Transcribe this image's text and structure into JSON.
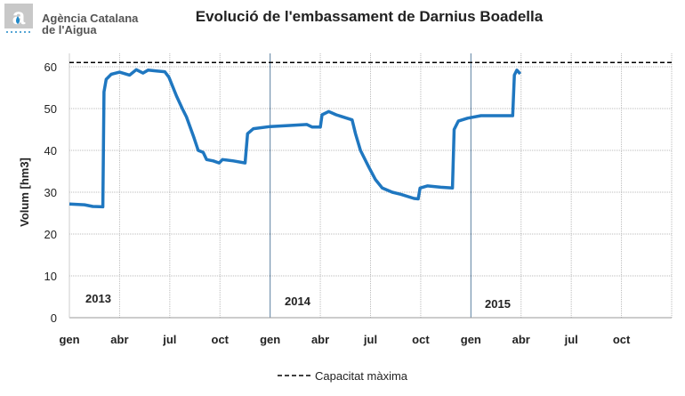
{
  "header": {
    "org_line1": "Agència Catalana",
    "org_line2": "de l'Aigua",
    "title": "Evolució de l'embassament de Darnius Boadella"
  },
  "colors": {
    "series": "#1f77c0",
    "capacity": "#000000",
    "grid": "#bbbbbb",
    "year_divider": "#5a7fa0"
  },
  "chart_data": {
    "type": "line",
    "title": "Evolució de l'embassament de Darnius Boadella",
    "ylabel": "Volum [hm3]",
    "xlabel": "",
    "ylim": [
      0,
      65
    ],
    "yticks": [
      0,
      10,
      20,
      30,
      40,
      50,
      60
    ],
    "xticks": [
      "gen",
      "abr",
      "jul",
      "oct",
      "gen",
      "abr",
      "jul",
      "oct",
      "gen",
      "abr",
      "jul",
      "oct"
    ],
    "year_labels": [
      "2013",
      "2014",
      "2015"
    ],
    "grid": true,
    "legend": "bottom",
    "capacity": {
      "name": "Capacitat màxima",
      "value": 61
    },
    "x_unit": "months since Jan 2013",
    "series": [
      {
        "x": [
          0,
          0.9,
          1.4,
          2.0,
          2.07,
          2.2,
          2.5,
          3.0,
          3.6,
          4.0,
          4.4,
          4.7,
          5.2,
          5.7,
          5.95,
          6.4,
          6.75,
          7.0,
          7.45,
          7.7,
          8.0,
          8.2,
          8.6,
          8.95,
          9.15,
          9.8,
          10.5,
          10.65,
          11.0,
          12.0,
          13.4,
          14.2,
          14.5,
          15.0,
          15.1,
          15.5,
          15.95,
          16.9,
          17.1,
          17.4,
          17.9,
          18.3,
          18.7,
          19.3,
          19.8,
          20.6,
          20.85,
          20.96,
          21.4,
          22.2,
          22.9,
          23.0,
          23.25,
          23.8,
          24.6,
          25.6,
          26.5,
          26.6,
          26.75,
          26.95
        ],
        "y": [
          27.2,
          27,
          26.6,
          26.5,
          54,
          57,
          58.2,
          58.7,
          58,
          59.3,
          58.5,
          59.2,
          59,
          58.8,
          57.5,
          53,
          50,
          48,
          43,
          40,
          39.5,
          37.8,
          37.5,
          37,
          37.8,
          37.5,
          37,
          44,
          45.2,
          45.7,
          46,
          46.2,
          45.6,
          45.6,
          48.5,
          49.3,
          48.5,
          47.3,
          44,
          40,
          36,
          33,
          31,
          30,
          29.5,
          28.5,
          28.4,
          31,
          31.5,
          31.2,
          31,
          45,
          47,
          47.7,
          48.3,
          48.3,
          48.3,
          58,
          59.2,
          58.3
        ]
      }
    ]
  }
}
